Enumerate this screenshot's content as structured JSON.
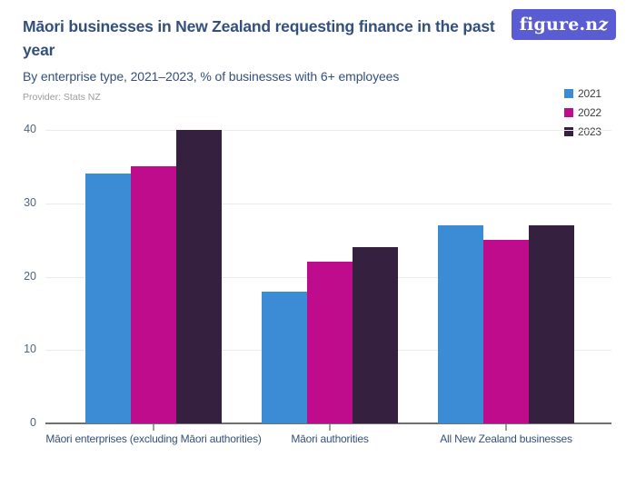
{
  "brand": {
    "logo_text": "figure.n",
    "logo_z": "z",
    "logo_bg": "#5a5cd3"
  },
  "header": {
    "title": "Māori businesses in New Zealand requesting finance in the past year",
    "subtitle": "By enterprise type, 2021–2023, % of businesses with 6+ employees",
    "provider": "Provider: Stats NZ"
  },
  "colors": {
    "title_text": "#33507c",
    "axis_label_text": "#51647e",
    "gridline": "#ebebeb",
    "axis_line": "#707070",
    "series_2021": "#3b8cd4",
    "series_2022": "#bf0c8c",
    "series_2023": "#362040"
  },
  "chart_data": {
    "type": "bar",
    "title": "Māori businesses in New Zealand requesting finance in the past year",
    "subtitle": "By enterprise type, 2021–2023, % of businesses with 6+ employees",
    "categories": [
      "Māori enterprises (excluding Māori authorities)",
      "Māori authorities",
      "All New Zealand businesses"
    ],
    "series": [
      {
        "name": "2021",
        "color": "#3b8cd4",
        "values": [
          34,
          18,
          27
        ]
      },
      {
        "name": "2022",
        "color": "#bf0c8c",
        "values": [
          35,
          22,
          25
        ]
      },
      {
        "name": "2023",
        "color": "#362040",
        "values": [
          40,
          24,
          27
        ]
      }
    ],
    "ylabel": "%",
    "ylim": [
      0,
      40
    ],
    "yticks": [
      0,
      10,
      20,
      30,
      40
    ],
    "grid": true,
    "legend_position": "top-right"
  }
}
